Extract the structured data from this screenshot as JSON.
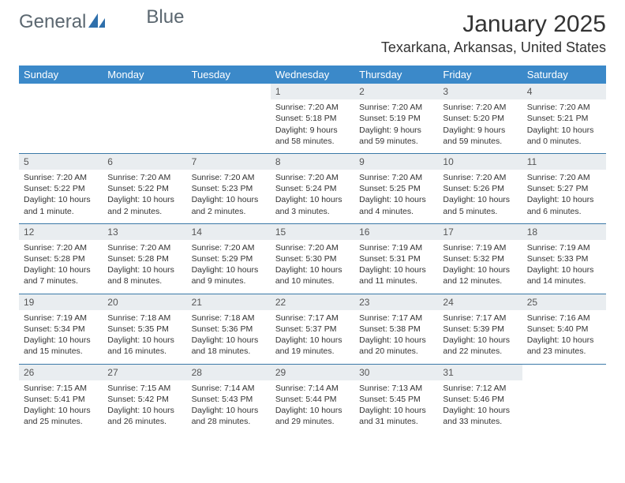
{
  "brand": {
    "name1": "General",
    "name2": "Blue"
  },
  "title": "January 2025",
  "location": "Texarkana, Arkansas, United States",
  "colors": {
    "header_bg": "#3b89c9",
    "header_text": "#ffffff",
    "row_border": "#3b79a8",
    "daynum_bg": "#e9edf0",
    "brand_text": "#5b6770",
    "brand_accent": "#2e6fab"
  },
  "weekdays": [
    "Sunday",
    "Monday",
    "Tuesday",
    "Wednesday",
    "Thursday",
    "Friday",
    "Saturday"
  ],
  "weeks": [
    [
      {
        "day": "",
        "sunrise": "",
        "sunset": "",
        "daylight": ""
      },
      {
        "day": "",
        "sunrise": "",
        "sunset": "",
        "daylight": ""
      },
      {
        "day": "",
        "sunrise": "",
        "sunset": "",
        "daylight": ""
      },
      {
        "day": "1",
        "sunrise": "Sunrise: 7:20 AM",
        "sunset": "Sunset: 5:18 PM",
        "daylight": "Daylight: 9 hours and 58 minutes."
      },
      {
        "day": "2",
        "sunrise": "Sunrise: 7:20 AM",
        "sunset": "Sunset: 5:19 PM",
        "daylight": "Daylight: 9 hours and 59 minutes."
      },
      {
        "day": "3",
        "sunrise": "Sunrise: 7:20 AM",
        "sunset": "Sunset: 5:20 PM",
        "daylight": "Daylight: 9 hours and 59 minutes."
      },
      {
        "day": "4",
        "sunrise": "Sunrise: 7:20 AM",
        "sunset": "Sunset: 5:21 PM",
        "daylight": "Daylight: 10 hours and 0 minutes."
      }
    ],
    [
      {
        "day": "5",
        "sunrise": "Sunrise: 7:20 AM",
        "sunset": "Sunset: 5:22 PM",
        "daylight": "Daylight: 10 hours and 1 minute."
      },
      {
        "day": "6",
        "sunrise": "Sunrise: 7:20 AM",
        "sunset": "Sunset: 5:22 PM",
        "daylight": "Daylight: 10 hours and 2 minutes."
      },
      {
        "day": "7",
        "sunrise": "Sunrise: 7:20 AM",
        "sunset": "Sunset: 5:23 PM",
        "daylight": "Daylight: 10 hours and 2 minutes."
      },
      {
        "day": "8",
        "sunrise": "Sunrise: 7:20 AM",
        "sunset": "Sunset: 5:24 PM",
        "daylight": "Daylight: 10 hours and 3 minutes."
      },
      {
        "day": "9",
        "sunrise": "Sunrise: 7:20 AM",
        "sunset": "Sunset: 5:25 PM",
        "daylight": "Daylight: 10 hours and 4 minutes."
      },
      {
        "day": "10",
        "sunrise": "Sunrise: 7:20 AM",
        "sunset": "Sunset: 5:26 PM",
        "daylight": "Daylight: 10 hours and 5 minutes."
      },
      {
        "day": "11",
        "sunrise": "Sunrise: 7:20 AM",
        "sunset": "Sunset: 5:27 PM",
        "daylight": "Daylight: 10 hours and 6 minutes."
      }
    ],
    [
      {
        "day": "12",
        "sunrise": "Sunrise: 7:20 AM",
        "sunset": "Sunset: 5:28 PM",
        "daylight": "Daylight: 10 hours and 7 minutes."
      },
      {
        "day": "13",
        "sunrise": "Sunrise: 7:20 AM",
        "sunset": "Sunset: 5:28 PM",
        "daylight": "Daylight: 10 hours and 8 minutes."
      },
      {
        "day": "14",
        "sunrise": "Sunrise: 7:20 AM",
        "sunset": "Sunset: 5:29 PM",
        "daylight": "Daylight: 10 hours and 9 minutes."
      },
      {
        "day": "15",
        "sunrise": "Sunrise: 7:20 AM",
        "sunset": "Sunset: 5:30 PM",
        "daylight": "Daylight: 10 hours and 10 minutes."
      },
      {
        "day": "16",
        "sunrise": "Sunrise: 7:19 AM",
        "sunset": "Sunset: 5:31 PM",
        "daylight": "Daylight: 10 hours and 11 minutes."
      },
      {
        "day": "17",
        "sunrise": "Sunrise: 7:19 AM",
        "sunset": "Sunset: 5:32 PM",
        "daylight": "Daylight: 10 hours and 12 minutes."
      },
      {
        "day": "18",
        "sunrise": "Sunrise: 7:19 AM",
        "sunset": "Sunset: 5:33 PM",
        "daylight": "Daylight: 10 hours and 14 minutes."
      }
    ],
    [
      {
        "day": "19",
        "sunrise": "Sunrise: 7:19 AM",
        "sunset": "Sunset: 5:34 PM",
        "daylight": "Daylight: 10 hours and 15 minutes."
      },
      {
        "day": "20",
        "sunrise": "Sunrise: 7:18 AM",
        "sunset": "Sunset: 5:35 PM",
        "daylight": "Daylight: 10 hours and 16 minutes."
      },
      {
        "day": "21",
        "sunrise": "Sunrise: 7:18 AM",
        "sunset": "Sunset: 5:36 PM",
        "daylight": "Daylight: 10 hours and 18 minutes."
      },
      {
        "day": "22",
        "sunrise": "Sunrise: 7:17 AM",
        "sunset": "Sunset: 5:37 PM",
        "daylight": "Daylight: 10 hours and 19 minutes."
      },
      {
        "day": "23",
        "sunrise": "Sunrise: 7:17 AM",
        "sunset": "Sunset: 5:38 PM",
        "daylight": "Daylight: 10 hours and 20 minutes."
      },
      {
        "day": "24",
        "sunrise": "Sunrise: 7:17 AM",
        "sunset": "Sunset: 5:39 PM",
        "daylight": "Daylight: 10 hours and 22 minutes."
      },
      {
        "day": "25",
        "sunrise": "Sunrise: 7:16 AM",
        "sunset": "Sunset: 5:40 PM",
        "daylight": "Daylight: 10 hours and 23 minutes."
      }
    ],
    [
      {
        "day": "26",
        "sunrise": "Sunrise: 7:15 AM",
        "sunset": "Sunset: 5:41 PM",
        "daylight": "Daylight: 10 hours and 25 minutes."
      },
      {
        "day": "27",
        "sunrise": "Sunrise: 7:15 AM",
        "sunset": "Sunset: 5:42 PM",
        "daylight": "Daylight: 10 hours and 26 minutes."
      },
      {
        "day": "28",
        "sunrise": "Sunrise: 7:14 AM",
        "sunset": "Sunset: 5:43 PM",
        "daylight": "Daylight: 10 hours and 28 minutes."
      },
      {
        "day": "29",
        "sunrise": "Sunrise: 7:14 AM",
        "sunset": "Sunset: 5:44 PM",
        "daylight": "Daylight: 10 hours and 29 minutes."
      },
      {
        "day": "30",
        "sunrise": "Sunrise: 7:13 AM",
        "sunset": "Sunset: 5:45 PM",
        "daylight": "Daylight: 10 hours and 31 minutes."
      },
      {
        "day": "31",
        "sunrise": "Sunrise: 7:12 AM",
        "sunset": "Sunset: 5:46 PM",
        "daylight": "Daylight: 10 hours and 33 minutes."
      },
      {
        "day": "",
        "sunrise": "",
        "sunset": "",
        "daylight": ""
      }
    ]
  ]
}
